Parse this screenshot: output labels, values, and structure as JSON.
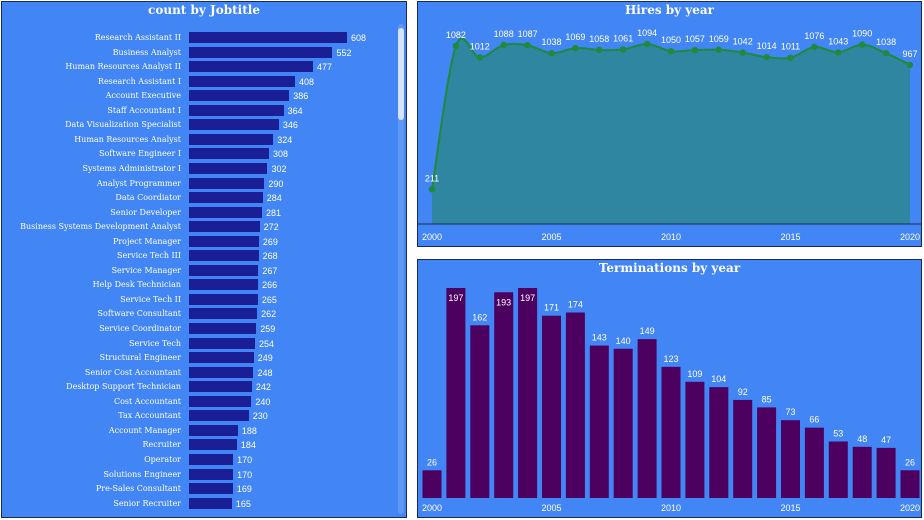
{
  "chart_data": [
    {
      "type": "bar",
      "orientation": "horizontal",
      "title": "count by Jobtitle",
      "categories": [
        "Research Assistant II",
        "Business Analyst",
        "Human Resources Analyst II",
        "Research Assistant I",
        "Account Executive",
        "Staff Accountant I",
        "Data Visualization Specialist",
        "Human Resources Analyst",
        "Software Engineer I",
        "Systems Administrator I",
        "Analyst Programmer",
        "Data Coordiator",
        "Senior Developer",
        "Business Systems Development Analyst",
        "Project Manager",
        "Service Tech III",
        "Service Manager",
        "Help Desk Technician",
        "Service Tech II",
        "Software Consultant",
        "Service Coordinator",
        "Service Tech",
        "Structural Engineer",
        "Senior Cost Accountant",
        "Desktop Support Technician",
        "Cost Accountant",
        "Tax Accountant",
        "Account Manager",
        "Recruiter",
        "Operator",
        "Solutions Engineer",
        "Pre-Sales Consultant",
        "Senior Recruiter"
      ],
      "values": [
        608,
        552,
        477,
        408,
        386,
        364,
        346,
        324,
        308,
        302,
        290,
        284,
        281,
        272,
        269,
        268,
        267,
        266,
        265,
        262,
        259,
        254,
        249,
        248,
        242,
        240,
        230,
        188,
        184,
        170,
        170,
        169,
        165
      ],
      "colors": {
        "bar": "#1a1f96",
        "background": "#4285f4"
      }
    },
    {
      "type": "area",
      "title": "Hires by year",
      "x": [
        2000,
        2001,
        2002,
        2003,
        2004,
        2005,
        2006,
        2007,
        2008,
        2009,
        2010,
        2011,
        2012,
        2013,
        2014,
        2015,
        2016,
        2017,
        2018,
        2019,
        2020
      ],
      "values": [
        211,
        1082,
        1012,
        1088,
        1087,
        1038,
        1069,
        1058,
        1061,
        1094,
        1050,
        1057,
        1059,
        1042,
        1014,
        1011,
        1076,
        1043,
        1090,
        1038,
        967
      ],
      "xticks": [
        "2000",
        "2005",
        "2010",
        "2015",
        "2020"
      ],
      "colors": {
        "line": "#1e8a3a",
        "fill": "#2e86a0",
        "background": "#4285f4"
      }
    },
    {
      "type": "bar",
      "title": "Terminations by year",
      "x": [
        2000,
        2001,
        2002,
        2003,
        2004,
        2005,
        2006,
        2007,
        2008,
        2009,
        2010,
        2011,
        2012,
        2013,
        2014,
        2015,
        2016,
        2017,
        2018,
        2019,
        2020
      ],
      "values": [
        26,
        197,
        162,
        193,
        197,
        171,
        174,
        143,
        140,
        149,
        123,
        109,
        104,
        92,
        85,
        73,
        66,
        53,
        48,
        47,
        26
      ],
      "xticks": [
        "2000",
        "2005",
        "2010",
        "2015",
        "2020"
      ],
      "colors": {
        "bar": "#4c0060",
        "background": "#4285f4"
      }
    }
  ]
}
